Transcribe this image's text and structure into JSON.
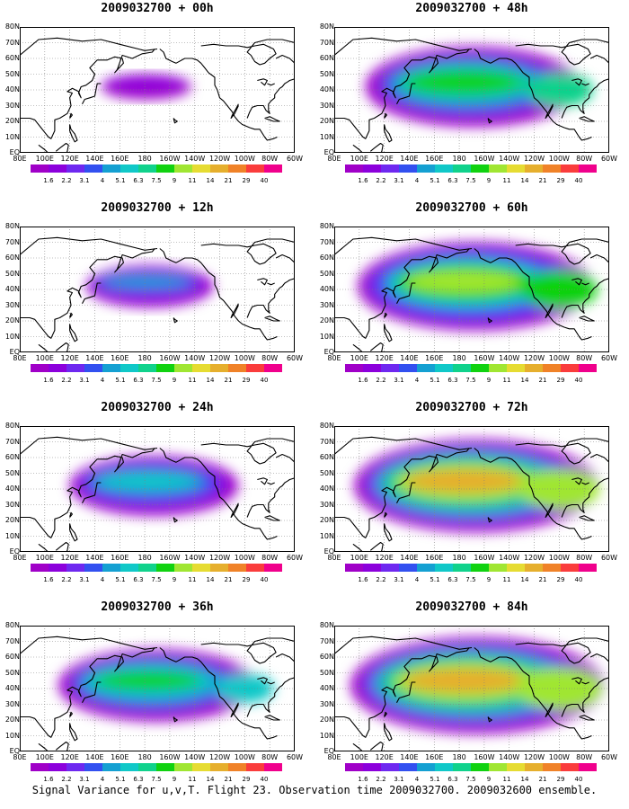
{
  "panels": [
    {
      "title": "2009032700 + 00h",
      "intensity": 0.08,
      "coverage": 0.08
    },
    {
      "title": "2009032700 + 48h",
      "intensity": 0.55,
      "coverage": 0.75
    },
    {
      "title": "2009032700 + 12h",
      "intensity": 0.28,
      "coverage": 0.28
    },
    {
      "title": "2009032700 + 60h",
      "intensity": 0.65,
      "coverage": 0.85
    },
    {
      "title": "2009032700 + 24h",
      "intensity": 0.42,
      "coverage": 0.5
    },
    {
      "title": "2009032700 + 72h",
      "intensity": 0.75,
      "coverage": 0.9
    },
    {
      "title": "2009032700 + 36h",
      "intensity": 0.5,
      "coverage": 0.65
    },
    {
      "title": "2009032700 + 84h",
      "intensity": 0.8,
      "coverage": 0.95
    }
  ],
  "lat_labels": [
    "80N",
    "70N",
    "60N",
    "50N",
    "40N",
    "30N",
    "20N",
    "10N",
    "EQ"
  ],
  "lon_labels": [
    "80E",
    "100E",
    "120E",
    "140E",
    "160E",
    "180",
    "160W",
    "140W",
    "120W",
    "100W",
    "80W",
    "60W"
  ],
  "colorbar": {
    "labels": [
      "1.6",
      "2.2",
      "3.1",
      "4",
      "5.1",
      "6.3",
      "7.5",
      "9",
      "11",
      "14",
      "21",
      "29",
      "40"
    ],
    "colors": [
      "#a000c8",
      "#8c00dc",
      "#6e28f0",
      "#3250f0",
      "#14a0d2",
      "#10c8c8",
      "#10d28c",
      "#10d210",
      "#a0e632",
      "#e6dc32",
      "#e6af2d",
      "#f08228",
      "#fa3c3c",
      "#f0008c"
    ]
  },
  "footer": "Signal Variance for u,v,T. Flight 23. Observation time 2009032700. 2009032600 ensemble."
}
